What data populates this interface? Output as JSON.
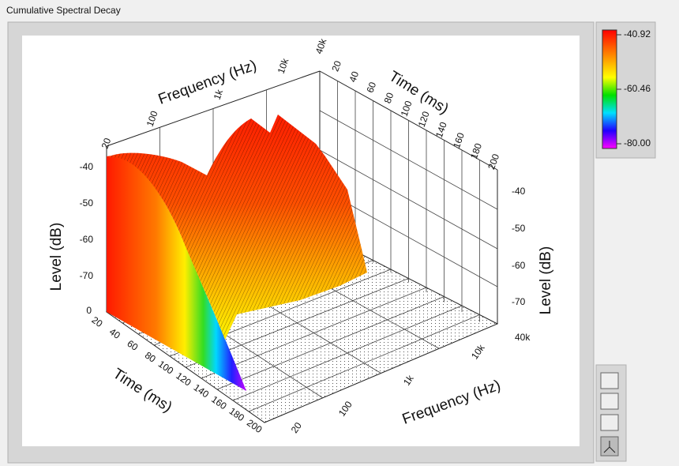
{
  "window": {
    "title": "Cumulative Spectral Decay"
  },
  "plot": {
    "frequency_top": {
      "title": "Frequency (Hz)",
      "ticks": [
        "20",
        "100",
        "1k",
        "10k",
        "40k"
      ]
    },
    "time_top": {
      "title": "Time (ms)",
      "ticks": [
        "20",
        "40",
        "60",
        "80",
        "100",
        "120",
        "140",
        "160",
        "180",
        "200"
      ]
    },
    "level_left": {
      "title": "Level (dB)",
      "ticks": [
        "-40",
        "-50",
        "-60",
        "-70",
        "0"
      ]
    },
    "level_right": {
      "title": "Level (dB)",
      "ticks": [
        "-40",
        "-50",
        "-60",
        "-70",
        "40k"
      ]
    },
    "time_front": {
      "title": "Time (ms)",
      "ticks": [
        "20",
        "40",
        "60",
        "80",
        "100",
        "120",
        "140",
        "160",
        "180",
        "200"
      ]
    },
    "frequency_front": {
      "title": "Frequency (Hz)",
      "ticks": [
        "20",
        "100",
        "1k",
        "10k"
      ]
    }
  },
  "colorbar": {
    "ticks": [
      "-40.92",
      "-60.46",
      "-80.00"
    ]
  }
}
